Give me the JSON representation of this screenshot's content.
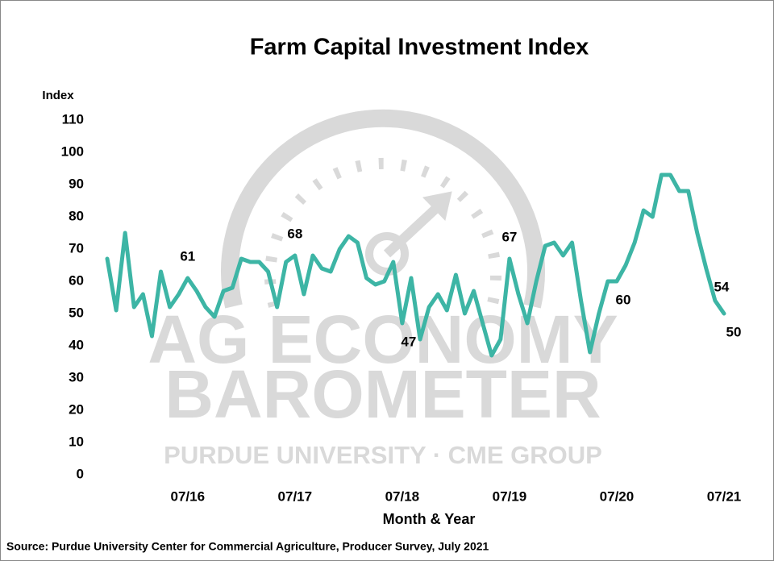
{
  "chart_data": {
    "type": "line",
    "title": "Farm Capital Investment Index",
    "y_label": "Index",
    "x_label": "Month & Year",
    "source": "Source: Purdue University Center for Commercial Agriculture, Producer Survey, July 2021",
    "watermark": [
      "AG ECONOMY",
      "BAROMETER",
      "PURDUE UNIVERSITY  ·  CME GROUP"
    ],
    "categories": [
      null,
      null,
      null,
      null,
      null,
      null,
      null,
      null,
      null,
      "07/16",
      null,
      null,
      null,
      null,
      null,
      null,
      null,
      null,
      null,
      null,
      null,
      "07/17",
      null,
      null,
      null,
      null,
      null,
      null,
      null,
      null,
      null,
      null,
      null,
      "07/18",
      null,
      null,
      null,
      null,
      null,
      null,
      null,
      null,
      null,
      null,
      null,
      "07/19",
      null,
      null,
      null,
      null,
      null,
      null,
      null,
      null,
      null,
      null,
      null,
      "07/20",
      null,
      null,
      null,
      null,
      null,
      null,
      null,
      null,
      null,
      null,
      null,
      "07/21"
    ],
    "series": [
      {
        "name": "Farm Capital Investment Index",
        "color": "#3db5a5",
        "values": [
          67,
          51,
          75,
          52,
          56,
          43,
          63,
          52,
          56,
          61,
          57,
          52,
          49,
          57,
          58,
          67,
          66,
          66,
          63,
          52,
          66,
          68,
          56,
          68,
          64,
          63,
          70,
          74,
          72,
          61,
          59,
          60,
          66,
          47,
          61,
          42,
          52,
          56,
          51,
          62,
          50,
          57,
          47,
          37,
          42,
          67,
          56,
          47,
          60,
          71,
          72,
          68,
          72,
          54,
          38,
          50,
          60,
          60,
          65,
          72,
          82,
          80,
          93,
          93,
          88,
          88,
          75,
          64,
          54,
          50
        ]
      }
    ],
    "value_labels": [
      null,
      null,
      null,
      null,
      null,
      null,
      null,
      null,
      null,
      "61",
      null,
      null,
      null,
      null,
      null,
      null,
      null,
      null,
      null,
      null,
      null,
      "68",
      null,
      null,
      null,
      null,
      null,
      null,
      null,
      null,
      null,
      null,
      null,
      "47",
      null,
      null,
      null,
      null,
      null,
      null,
      null,
      null,
      null,
      null,
      null,
      "67",
      null,
      null,
      null,
      null,
      null,
      null,
      null,
      null,
      null,
      null,
      null,
      "60",
      null,
      null,
      null,
      null,
      null,
      null,
      null,
      null,
      null,
      null,
      "54",
      "50"
    ],
    "ylim": [
      0,
      110
    ],
    "yticks": [
      0,
      10,
      20,
      30,
      40,
      50,
      60,
      70,
      80,
      90,
      100,
      110
    ],
    "grid": false
  }
}
